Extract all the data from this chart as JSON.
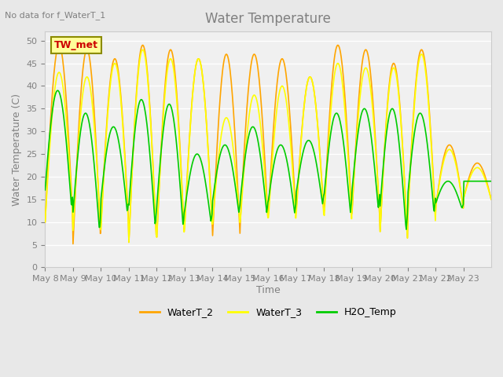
{
  "title": "Water Temperature",
  "top_left_text": "No data for f_WaterT_1",
  "ylabel": "Water Temperature (C)",
  "xlabel": "Time",
  "ylim": [
    0,
    52
  ],
  "yticks": [
    0,
    5,
    10,
    15,
    20,
    25,
    30,
    35,
    40,
    45,
    50
  ],
  "annotation_text": "TW_met",
  "annotation_color": "#cc0000",
  "annotation_box_color": "#ffff99",
  "annotation_box_edge": "#8B8B00",
  "bg_color": "#e8e8e8",
  "plot_bg_color": "#f0f0f0",
  "line_colors": {
    "WaterT_2": "#FFA500",
    "WaterT_3": "#FFFF00",
    "H2O_Temp": "#00CC00"
  },
  "legend_labels": [
    "WaterT_2",
    "WaterT_3",
    "H2O_Temp"
  ],
  "x_tick_labels": [
    "May 8",
    "May 9",
    "May 10",
    "May 11",
    "May 12",
    "May 13",
    "May 14",
    "May 15",
    "May 16",
    "May 17",
    "May 18",
    "May 19",
    "May 20",
    "May 21",
    "May 22",
    "May 23"
  ],
  "wt2_peaks": [
    49,
    48,
    46,
    49,
    48,
    46,
    47,
    47,
    46,
    42,
    49,
    48,
    45,
    48,
    27,
    23
  ],
  "wt2_troughs": [
    10,
    5,
    9,
    5,
    6,
    9,
    6,
    10,
    11,
    12,
    11,
    11,
    6,
    11,
    13,
    15
  ],
  "wt3_peaks": [
    43,
    42,
    45,
    48,
    46,
    46,
    33,
    38,
    40,
    42,
    45,
    44,
    44,
    47,
    26,
    22
  ],
  "wt3_troughs": [
    10,
    8,
    8,
    5,
    6,
    8,
    9,
    10,
    10,
    11,
    10,
    12,
    6,
    10,
    13,
    15
  ],
  "h2o_peaks": [
    39,
    34,
    31,
    37,
    36,
    25,
    27,
    31,
    27,
    28,
    34,
    35,
    35,
    34,
    19,
    19
  ],
  "h2o_troughs": [
    13,
    8,
    12,
    9,
    9,
    10,
    12,
    12,
    12,
    14,
    12,
    13,
    8,
    12,
    13,
    19
  ]
}
